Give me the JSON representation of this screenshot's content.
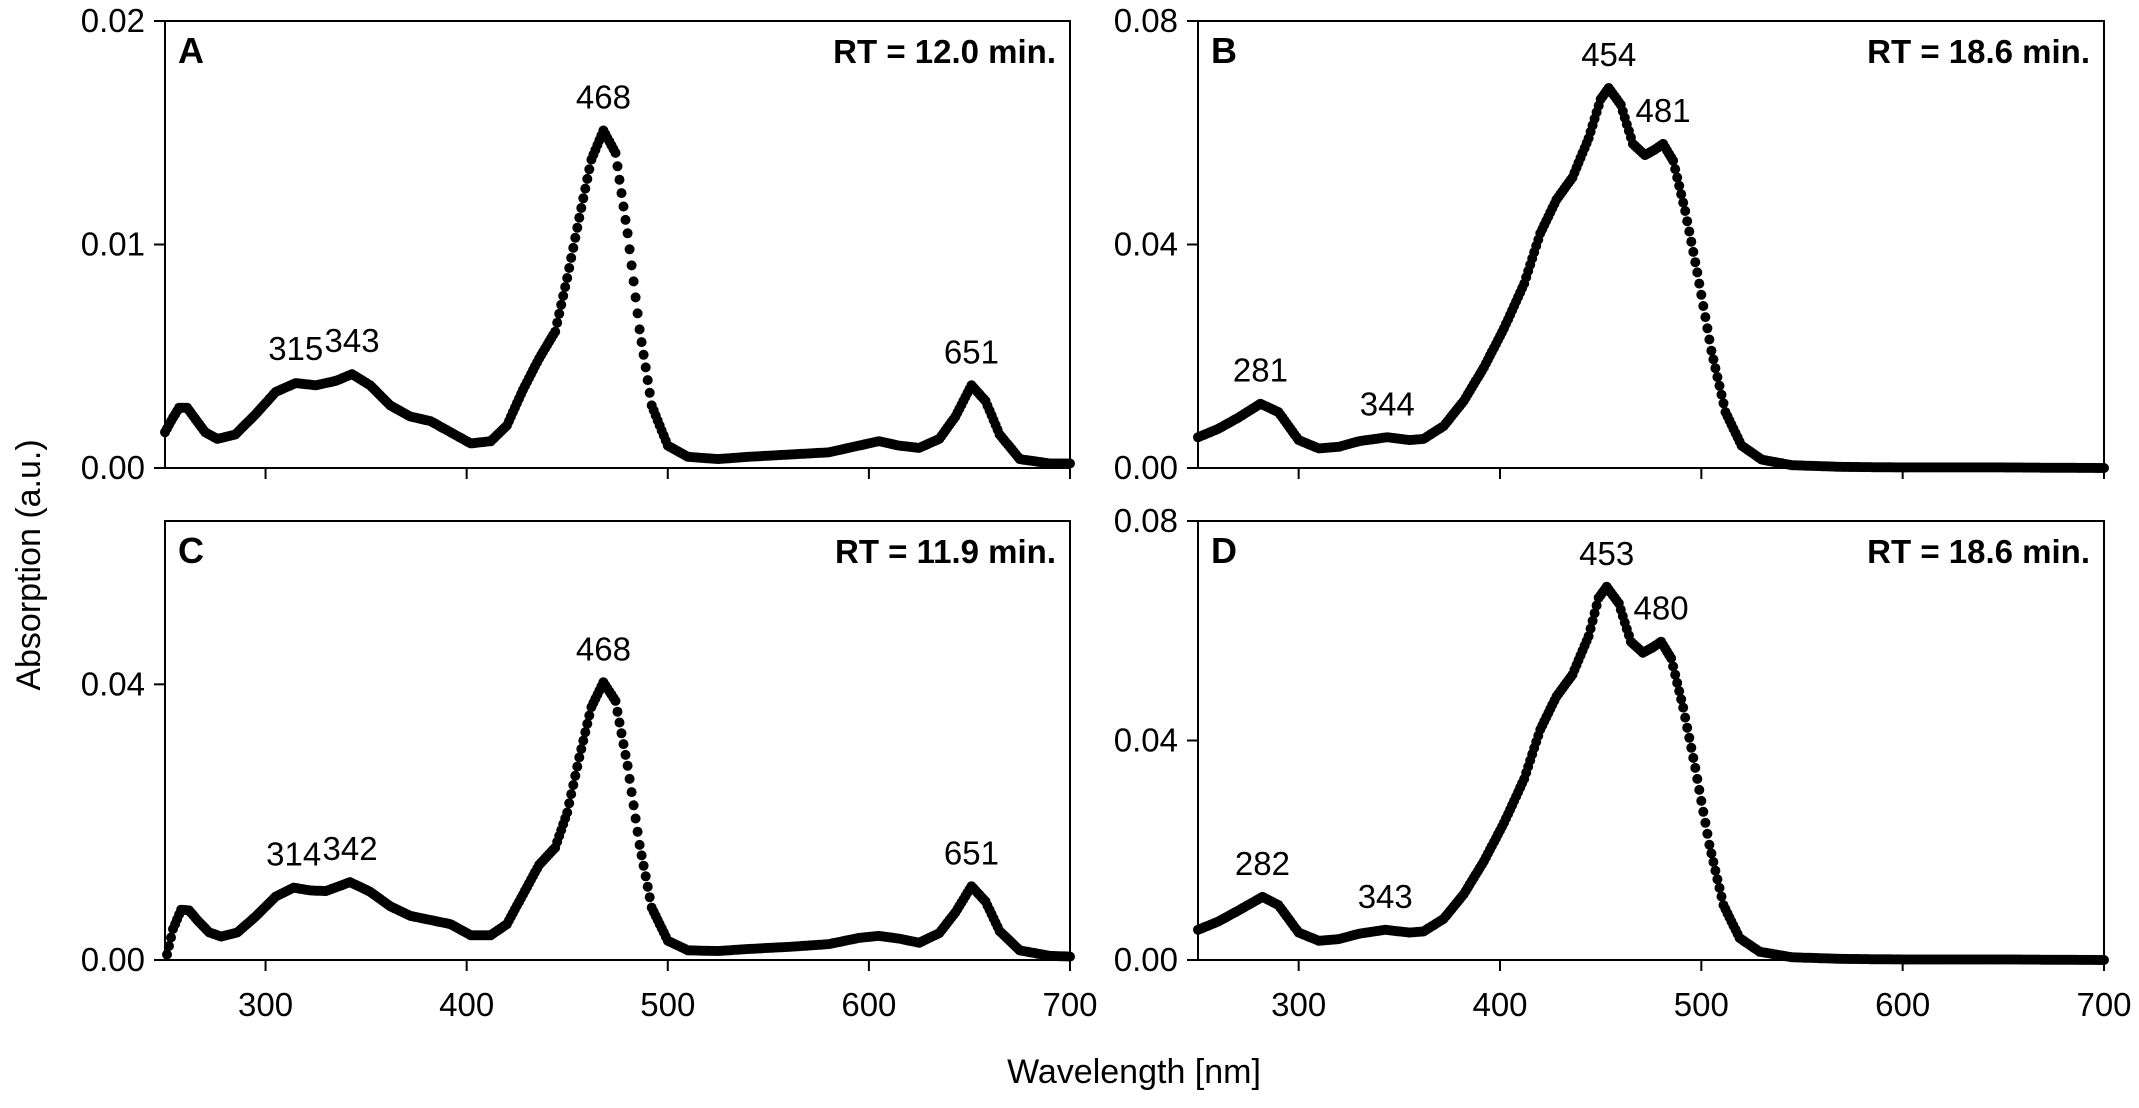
{
  "figure": {
    "xlabel": "Wavelength [nm]",
    "ylabel": "Absorption (a.u.)"
  },
  "chart_data": [
    {
      "type": "scatter",
      "panel_label": "A",
      "annotation": "RT = 12.0 min.",
      "xlim": [
        250,
        700
      ],
      "ylim": [
        0,
        0.02
      ],
      "yticks": [
        0,
        0.01,
        0.02
      ],
      "ytick_labels": [
        "0.00",
        "0.01",
        "0.02"
      ],
      "xticks": [
        300,
        400,
        500,
        600,
        700
      ],
      "xtick_labels": [],
      "peak_labels": [
        {
          "label": "315",
          "x": 315,
          "y": 0.00385
        },
        {
          "label": "343",
          "x": 343,
          "y": 0.0042
        },
        {
          "label": "468",
          "x": 468,
          "y": 0.0151
        },
        {
          "label": "651",
          "x": 651,
          "y": 0.0037
        }
      ],
      "curve": [
        [
          250,
          0.0016
        ],
        [
          253,
          0.0021
        ],
        [
          257,
          0.0027
        ],
        [
          261,
          0.0027
        ],
        [
          265,
          0.0022
        ],
        [
          270,
          0.0016
        ],
        [
          276,
          0.0013
        ],
        [
          285,
          0.0015
        ],
        [
          295,
          0.0024
        ],
        [
          305,
          0.0034
        ],
        [
          315,
          0.0038
        ],
        [
          325,
          0.0037
        ],
        [
          335,
          0.0039
        ],
        [
          343,
          0.0042
        ],
        [
          352,
          0.0037
        ],
        [
          362,
          0.0028
        ],
        [
          372,
          0.0023
        ],
        [
          382,
          0.0021
        ],
        [
          392,
          0.0016
        ],
        [
          402,
          0.0011
        ],
        [
          412,
          0.0012
        ],
        [
          420,
          0.0019
        ],
        [
          428,
          0.0035
        ],
        [
          436,
          0.0049
        ],
        [
          444,
          0.0061
        ],
        [
          450,
          0.0085
        ],
        [
          456,
          0.0112
        ],
        [
          462,
          0.0138
        ],
        [
          468,
          0.0151
        ],
        [
          474,
          0.0141
        ],
        [
          480,
          0.0105
        ],
        [
          486,
          0.0062
        ],
        [
          492,
          0.0028
        ],
        [
          500,
          0.001
        ],
        [
          510,
          0.0005
        ],
        [
          525,
          0.0004
        ],
        [
          540,
          0.0005
        ],
        [
          560,
          0.0006
        ],
        [
          580,
          0.0007
        ],
        [
          595,
          0.001
        ],
        [
          605,
          0.0012
        ],
        [
          615,
          0.001
        ],
        [
          625,
          0.0009
        ],
        [
          635,
          0.0013
        ],
        [
          643,
          0.0023
        ],
        [
          651,
          0.0037
        ],
        [
          658,
          0.003
        ],
        [
          665,
          0.0015
        ],
        [
          675,
          0.0004
        ],
        [
          690,
          0.0002
        ],
        [
          700,
          0.0002
        ]
      ]
    },
    {
      "type": "scatter",
      "panel_label": "B",
      "annotation": "RT = 18.6 min.",
      "xlim": [
        250,
        700
      ],
      "ylim": [
        0,
        0.08
      ],
      "yticks": [
        0,
        0.04,
        0.08
      ],
      "ytick_labels": [
        "0.00",
        "0.04",
        "0.08"
      ],
      "xticks": [
        300,
        400,
        500,
        600,
        700
      ],
      "xtick_labels": [],
      "peak_labels": [
        {
          "label": "281",
          "x": 281,
          "y": 0.0115
        },
        {
          "label": "344",
          "x": 344,
          "y": 0.0055
        },
        {
          "label": "454",
          "x": 454,
          "y": 0.068
        },
        {
          "label": "481",
          "x": 481,
          "y": 0.058
        }
      ],
      "curve": [
        [
          250,
          0.0055
        ],
        [
          260,
          0.007
        ],
        [
          270,
          0.009
        ],
        [
          281,
          0.0115
        ],
        [
          290,
          0.01
        ],
        [
          300,
          0.005
        ],
        [
          310,
          0.0035
        ],
        [
          320,
          0.0038
        ],
        [
          330,
          0.0048
        ],
        [
          344,
          0.0055
        ],
        [
          355,
          0.005
        ],
        [
          362,
          0.0052
        ],
        [
          372,
          0.0075
        ],
        [
          382,
          0.012
        ],
        [
          392,
          0.018
        ],
        [
          402,
          0.025
        ],
        [
          412,
          0.033
        ],
        [
          420,
          0.042
        ],
        [
          428,
          0.048
        ],
        [
          436,
          0.052
        ],
        [
          444,
          0.059
        ],
        [
          450,
          0.066
        ],
        [
          454,
          0.068
        ],
        [
          460,
          0.065
        ],
        [
          466,
          0.058
        ],
        [
          472,
          0.056
        ],
        [
          477,
          0.057
        ],
        [
          481,
          0.058
        ],
        [
          486,
          0.055
        ],
        [
          492,
          0.046
        ],
        [
          498,
          0.035
        ],
        [
          505,
          0.021
        ],
        [
          512,
          0.01
        ],
        [
          520,
          0.004
        ],
        [
          530,
          0.0015
        ],
        [
          545,
          0.0005
        ],
        [
          570,
          0.0002
        ],
        [
          600,
          0.0001
        ],
        [
          650,
          0.0001
        ],
        [
          700,
          0.0
        ]
      ]
    },
    {
      "type": "scatter",
      "panel_label": "C",
      "annotation": "RT = 11.9 min.",
      "xlim": [
        250,
        700
      ],
      "ylim": [
        0,
        0.0637
      ],
      "yticks": [
        0,
        0.04
      ],
      "ytick_labels": [
        "0.00",
        "0.04"
      ],
      "xticks": [
        300,
        400,
        500,
        600,
        700
      ],
      "xtick_labels": [
        "300",
        "400",
        "500",
        "600",
        "700"
      ],
      "peak_labels": [
        {
          "label": "314",
          "x": 314,
          "y": 0.0105
        },
        {
          "label": "342",
          "x": 342,
          "y": 0.0113
        },
        {
          "label": "468",
          "x": 468,
          "y": 0.0403
        },
        {
          "label": "651",
          "x": 651,
          "y": 0.0107
        }
      ],
      "curve": [
        [
          251,
          0.0008
        ],
        [
          254,
          0.0045
        ],
        [
          258,
          0.0073
        ],
        [
          262,
          0.0072
        ],
        [
          266,
          0.0058
        ],
        [
          272,
          0.004
        ],
        [
          278,
          0.0034
        ],
        [
          286,
          0.004
        ],
        [
          295,
          0.0063
        ],
        [
          305,
          0.0092
        ],
        [
          314,
          0.0105
        ],
        [
          322,
          0.0101
        ],
        [
          330,
          0.01
        ],
        [
          342,
          0.0113
        ],
        [
          352,
          0.0099
        ],
        [
          362,
          0.0078
        ],
        [
          372,
          0.0064
        ],
        [
          382,
          0.0058
        ],
        [
          392,
          0.0052
        ],
        [
          402,
          0.0036
        ],
        [
          412,
          0.0036
        ],
        [
          420,
          0.0052
        ],
        [
          428,
          0.0095
        ],
        [
          436,
          0.0138
        ],
        [
          444,
          0.0163
        ],
        [
          450,
          0.0214
        ],
        [
          456,
          0.0294
        ],
        [
          462,
          0.0367
        ],
        [
          468,
          0.0403
        ],
        [
          474,
          0.0376
        ],
        [
          480,
          0.0282
        ],
        [
          486,
          0.0167
        ],
        [
          492,
          0.0076
        ],
        [
          500,
          0.0028
        ],
        [
          510,
          0.0014
        ],
        [
          525,
          0.0013
        ],
        [
          540,
          0.0016
        ],
        [
          560,
          0.0019
        ],
        [
          580,
          0.0023
        ],
        [
          595,
          0.0032
        ],
        [
          605,
          0.0035
        ],
        [
          615,
          0.0031
        ],
        [
          625,
          0.0025
        ],
        [
          635,
          0.0039
        ],
        [
          643,
          0.0069
        ],
        [
          651,
          0.0107
        ],
        [
          658,
          0.0085
        ],
        [
          665,
          0.0042
        ],
        [
          675,
          0.0014
        ],
        [
          690,
          0.0006
        ],
        [
          700,
          0.0005
        ]
      ]
    },
    {
      "type": "scatter",
      "panel_label": "D",
      "annotation": "RT = 18.6 min.",
      "xlim": [
        250,
        700
      ],
      "ylim": [
        0,
        0.08
      ],
      "yticks": [
        0,
        0.04,
        0.08
      ],
      "ytick_labels": [
        "0.00",
        "0.04",
        "0.08"
      ],
      "xticks": [
        300,
        400,
        500,
        600,
        700
      ],
      "xtick_labels": [
        "300",
        "400",
        "500",
        "600",
        "700"
      ],
      "peak_labels": [
        {
          "label": "282",
          "x": 282,
          "y": 0.0115
        },
        {
          "label": "343",
          "x": 343,
          "y": 0.0055
        },
        {
          "label": "453",
          "x": 453,
          "y": 0.068
        },
        {
          "label": "480",
          "x": 480,
          "y": 0.058
        }
      ],
      "curve": [
        [
          250,
          0.0055
        ],
        [
          260,
          0.007
        ],
        [
          270,
          0.009
        ],
        [
          282,
          0.0115
        ],
        [
          290,
          0.01
        ],
        [
          300,
          0.005
        ],
        [
          310,
          0.0035
        ],
        [
          320,
          0.0038
        ],
        [
          330,
          0.0048
        ],
        [
          343,
          0.0055
        ],
        [
          355,
          0.005
        ],
        [
          362,
          0.0052
        ],
        [
          372,
          0.0075
        ],
        [
          382,
          0.012
        ],
        [
          392,
          0.018
        ],
        [
          402,
          0.025
        ],
        [
          412,
          0.033
        ],
        [
          420,
          0.042
        ],
        [
          428,
          0.048
        ],
        [
          436,
          0.052
        ],
        [
          444,
          0.059
        ],
        [
          449,
          0.066
        ],
        [
          453,
          0.068
        ],
        [
          459,
          0.065
        ],
        [
          465,
          0.058
        ],
        [
          471,
          0.056
        ],
        [
          476,
          0.057
        ],
        [
          480,
          0.058
        ],
        [
          485,
          0.055
        ],
        [
          491,
          0.046
        ],
        [
          497,
          0.035
        ],
        [
          504,
          0.021
        ],
        [
          511,
          0.01
        ],
        [
          519,
          0.004
        ],
        [
          529,
          0.0015
        ],
        [
          545,
          0.0005
        ],
        [
          570,
          0.0002
        ],
        [
          600,
          0.0001
        ],
        [
          650,
          0.0001
        ],
        [
          700,
          0.0
        ]
      ]
    }
  ]
}
